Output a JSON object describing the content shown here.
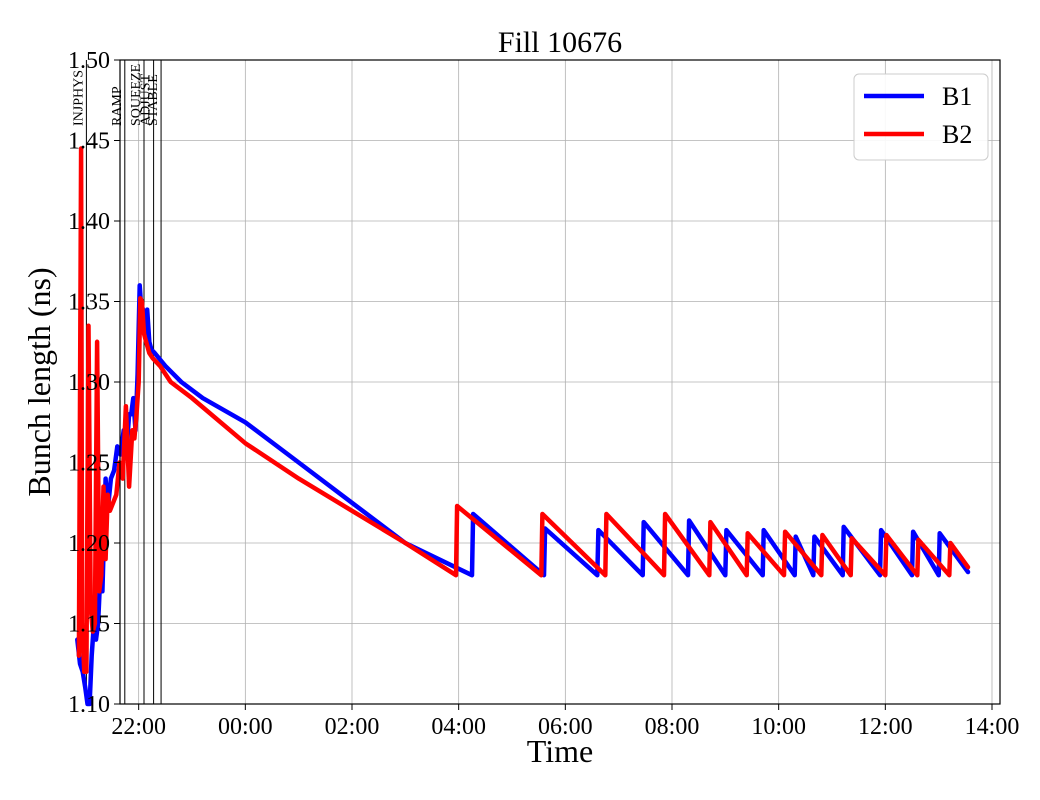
{
  "chart_data": {
    "type": "line",
    "title": "Fill 10676",
    "xlabel": "Time",
    "ylabel": "Bunch length (ns)",
    "x_unit": "hours relative to 00:00 (negative = previous day)",
    "xlim": [
      -2.35,
      14.15
    ],
    "ylim": [
      1.1,
      1.5
    ],
    "grid": true,
    "legend_position": "top-right",
    "x_ticks": [
      {
        "value": -2,
        "label": "22:00"
      },
      {
        "value": 0,
        "label": "00:00"
      },
      {
        "value": 2,
        "label": "02:00"
      },
      {
        "value": 4,
        "label": "04:00"
      },
      {
        "value": 6,
        "label": "06:00"
      },
      {
        "value": 8,
        "label": "08:00"
      },
      {
        "value": 10,
        "label": "10:00"
      },
      {
        "value": 12,
        "label": "12:00"
      },
      {
        "value": 14,
        "label": "14:00"
      }
    ],
    "y_ticks": [
      {
        "value": 1.1,
        "label": "1.10"
      },
      {
        "value": 1.15,
        "label": "1.15"
      },
      {
        "value": 1.2,
        "label": "1.20"
      },
      {
        "value": 1.25,
        "label": "1.25"
      },
      {
        "value": 1.3,
        "label": "1.30"
      },
      {
        "value": 1.35,
        "label": "1.35"
      },
      {
        "value": 1.4,
        "label": "1.40"
      },
      {
        "value": 1.45,
        "label": "1.45"
      },
      {
        "value": 1.5,
        "label": "1.50"
      }
    ],
    "phase_markers": [
      {
        "label": "INJPHYS",
        "x": -2.98
      },
      {
        "label": "RAMP",
        "x": -2.26
      },
      {
        "label": "SQUEEZE",
        "x": -1.9
      },
      {
        "label": "ADJUST",
        "x": -1.72
      },
      {
        "label": "STABLE",
        "x": -1.58
      }
    ],
    "series": [
      {
        "name": "B1",
        "color": "#0000ff",
        "x": [
          -3.15,
          -3.1,
          -3.05,
          -3.0,
          -2.96,
          -2.92,
          -2.88,
          -2.84,
          -2.8,
          -2.76,
          -2.72,
          -2.68,
          -2.62,
          -2.58,
          -2.52,
          -2.46,
          -2.4,
          -2.34,
          -2.28,
          -2.22,
          -2.18,
          -2.14,
          -2.1,
          -2.06,
          -2.02,
          -1.98,
          -1.96,
          -1.92,
          -1.88,
          -1.84,
          -1.8,
          -1.76,
          -1.7,
          -1.5,
          -1.2,
          -0.8,
          0,
          1,
          2,
          3,
          4.0,
          4.25,
          4.27,
          5.6,
          5.62,
          6.6,
          6.62,
          7.45,
          7.47,
          8.3,
          8.32,
          9.0,
          9.02,
          9.7,
          9.72,
          10.3,
          10.32,
          10.65,
          10.67,
          11.2,
          11.22,
          11.9,
          11.92,
          12.5,
          12.52,
          13.0,
          13.02,
          13.55
        ],
        "y": [
          1.14,
          1.125,
          1.12,
          1.11,
          1.1,
          1.1,
          1.13,
          1.15,
          1.14,
          1.15,
          1.18,
          1.17,
          1.24,
          1.22,
          1.24,
          1.245,
          1.26,
          1.255,
          1.27,
          1.26,
          1.28,
          1.28,
          1.29,
          1.27,
          1.305,
          1.36,
          1.35,
          1.345,
          1.33,
          1.345,
          1.325,
          1.32,
          1.318,
          1.31,
          1.3,
          1.29,
          1.275,
          1.25,
          1.225,
          1.2,
          1.184,
          1.18,
          1.218,
          1.18,
          1.209,
          1.18,
          1.208,
          1.18,
          1.213,
          1.18,
          1.214,
          1.18,
          1.208,
          1.18,
          1.208,
          1.18,
          1.204,
          1.18,
          1.204,
          1.18,
          1.21,
          1.18,
          1.208,
          1.18,
          1.207,
          1.18,
          1.206,
          1.182
        ]
      },
      {
        "name": "B2",
        "color": "#ff0000",
        "x": [
          -3.12,
          -3.08,
          -3.06,
          -3.02,
          -2.98,
          -2.94,
          -2.9,
          -2.86,
          -2.82,
          -2.78,
          -2.74,
          -2.7,
          -2.66,
          -2.62,
          -2.58,
          -2.54,
          -2.48,
          -2.42,
          -2.36,
          -2.3,
          -2.24,
          -2.18,
          -2.12,
          -2.08,
          -2.04,
          -2.0,
          -1.97,
          -1.94,
          -1.9,
          -1.86,
          -1.8,
          -1.74,
          -1.6,
          -1.4,
          -1.0,
          0,
          1,
          2,
          3,
          3.95,
          3.97,
          5.55,
          5.57,
          6.75,
          6.77,
          7.85,
          7.87,
          8.7,
          8.72,
          9.4,
          9.42,
          10.1,
          10.12,
          10.8,
          10.82,
          11.35,
          11.37,
          12.0,
          12.02,
          12.6,
          12.62,
          13.2,
          13.22,
          13.55
        ],
        "y": [
          1.13,
          1.445,
          1.15,
          1.12,
          1.12,
          1.335,
          1.16,
          1.145,
          1.15,
          1.325,
          1.17,
          1.18,
          1.235,
          1.19,
          1.23,
          1.22,
          1.225,
          1.23,
          1.25,
          1.24,
          1.285,
          1.235,
          1.27,
          1.265,
          1.28,
          1.3,
          1.352,
          1.35,
          1.33,
          1.325,
          1.318,
          1.315,
          1.31,
          1.3,
          1.29,
          1.262,
          1.24,
          1.22,
          1.2,
          1.18,
          1.223,
          1.18,
          1.218,
          1.18,
          1.218,
          1.18,
          1.218,
          1.18,
          1.213,
          1.18,
          1.206,
          1.18,
          1.207,
          1.18,
          1.205,
          1.18,
          1.203,
          1.18,
          1.205,
          1.18,
          1.202,
          1.18,
          1.2,
          1.185
        ]
      }
    ]
  }
}
